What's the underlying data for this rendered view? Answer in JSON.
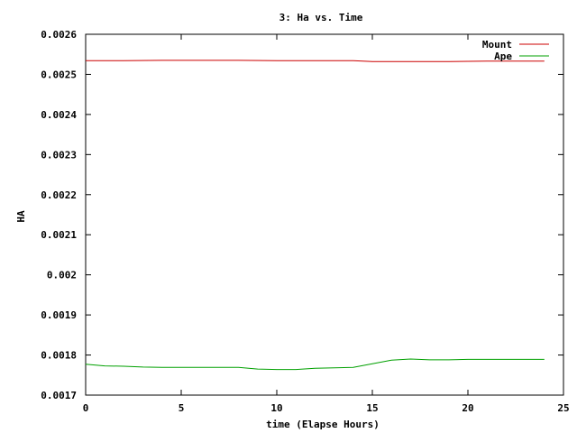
{
  "chart_data": {
    "type": "line",
    "title": "3: Ha vs. Time",
    "xlabel": "time (Elapse Hours)",
    "ylabel": "HA",
    "xlim": [
      0,
      25
    ],
    "ylim": [
      0.0017,
      0.0026
    ],
    "x_ticks": [
      0,
      5,
      10,
      15,
      20,
      25
    ],
    "y_ticks": [
      0.0017,
      0.0018,
      0.0019,
      0.002,
      0.0021,
      0.0022,
      0.0023,
      0.0024,
      0.0025,
      0.0026
    ],
    "x_tick_labels": [
      "0",
      "5",
      "10",
      "15",
      "20",
      "25"
    ],
    "y_tick_labels": [
      "0.0017",
      "0.0018",
      "0.0019",
      "0.002",
      "0.0021",
      "0.0022",
      "0.0023",
      "0.0024",
      "0.0025",
      "0.0026"
    ],
    "grid": false,
    "legend_position": "top-right",
    "series": [
      {
        "name": "Mount",
        "color": "#cc0000",
        "x": [
          0,
          2,
          4,
          6,
          8,
          10,
          12,
          14,
          15,
          17,
          19,
          21,
          23,
          24
        ],
        "y": [
          0.002534,
          0.002534,
          0.002535,
          0.002535,
          0.002535,
          0.002534,
          0.002534,
          0.002534,
          0.002532,
          0.002532,
          0.002532,
          0.002533,
          0.002533,
          0.002533
        ]
      },
      {
        "name": "Ape",
        "color": "#00a000",
        "x": [
          0,
          1,
          2,
          3,
          4,
          6,
          8,
          9,
          10,
          11,
          12,
          14,
          15,
          16,
          17,
          18,
          19,
          20,
          22,
          24
        ],
        "y": [
          0.001777,
          0.001773,
          0.001772,
          0.00177,
          0.001769,
          0.001769,
          0.001769,
          0.001765,
          0.001764,
          0.001764,
          0.001767,
          0.001769,
          0.001778,
          0.001787,
          0.00179,
          0.001788,
          0.001788,
          0.001789,
          0.001789,
          0.001789
        ]
      }
    ]
  }
}
